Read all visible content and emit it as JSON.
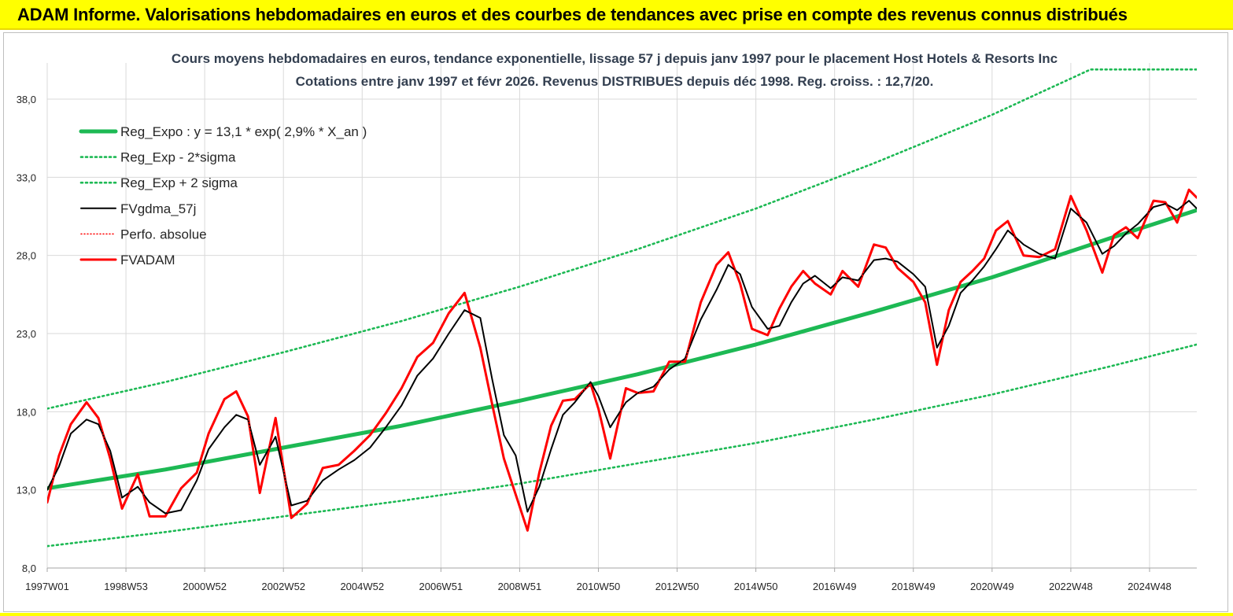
{
  "banner": {
    "title": "ADAM Informe. Valorisations hebdomadaires en euros et des courbes de tendances avec prise en compte des revenus connus distribués"
  },
  "colors": {
    "banner_bg": "#ffff00",
    "reg_expo": "#1db954",
    "fv_gdma": "#000000",
    "perfo": "#ff0000",
    "fv_adam": "#ff0000",
    "grid": "#d9d9d9"
  },
  "chart_data": {
    "type": "line",
    "title": "Cours moyens hebdomadaires en euros, tendance exponentielle, lissage 57 j depuis janv 1997 pour le placement Host Hotels & Resorts Inc",
    "subtitle": "Cotations entre janv 1997 et févr 2026. Revenus DISTRIBUES depuis déc 1998. Reg. croiss. : 12,7/20.",
    "xlabel": "",
    "ylabel": "",
    "ylim": [
      8,
      38
    ],
    "xlim": [
      1997.0,
      2026.2
    ],
    "yticks": [
      8,
      13,
      18,
      23,
      28,
      33,
      38
    ],
    "ytick_labels": [
      "8,0",
      "13,0",
      "18,0",
      "23,0",
      "28,0",
      "33,0",
      "38,0"
    ],
    "xticks": [
      1997.0,
      1999.0,
      2001.0,
      2003.0,
      2005.0,
      2007.0,
      2009.0,
      2011.0,
      2013.0,
      2015.0,
      2017.0,
      2019.0,
      2021.0,
      2023.0,
      2025.0
    ],
    "xtick_labels": [
      "1997W01",
      "1998W53",
      "2000W52",
      "2002W52",
      "2004W52",
      "2006W51",
      "2008W51",
      "2010W50",
      "2012W50",
      "2014W50",
      "2016W49",
      "2018W49",
      "2020W49",
      "2022W48",
      "2024W48"
    ],
    "legend_position": "top-left",
    "series": [
      {
        "name": "Reg_Expo : y = 13,1 * exp( 2,9% *  X_an )",
        "style": "solid-thick",
        "color": "#1db954",
        "x": [
          1997.0,
          2000.0,
          2003.0,
          2006.0,
          2009.0,
          2012.0,
          2015.0,
          2018.0,
          2021.0,
          2024.0,
          2026.2
        ],
        "values": [
          13.1,
          14.3,
          15.7,
          17.1,
          18.7,
          20.4,
          22.3,
          24.4,
          26.6,
          29.1,
          30.9
        ]
      },
      {
        "name": "Reg_Exp - 2*sigma",
        "style": "dotted",
        "color": "#1db954",
        "x": [
          1997.0,
          2000.0,
          2003.0,
          2006.0,
          2009.0,
          2012.0,
          2015.0,
          2018.0,
          2021.0,
          2024.0,
          2026.2
        ],
        "values": [
          9.4,
          10.3,
          11.3,
          12.3,
          13.4,
          14.7,
          16.0,
          17.5,
          19.1,
          20.9,
          22.3
        ]
      },
      {
        "name": "Reg_Exp + 2 sigma",
        "style": "dotted",
        "color": "#1db954",
        "x": [
          1997.0,
          2000.0,
          2003.0,
          2006.0,
          2009.0,
          2012.0,
          2015.0,
          2018.0,
          2021.0,
          2023.5,
          2026.2
        ],
        "values": [
          18.2,
          19.9,
          21.8,
          23.8,
          26.0,
          28.4,
          31.0,
          33.9,
          37.0,
          39.9,
          39.9
        ]
      },
      {
        "name": "FVgdma_57j",
        "style": "solid",
        "color": "#000000",
        "x": [
          1997.0,
          1997.3,
          1997.6,
          1998.0,
          1998.3,
          1998.6,
          1998.9,
          1999.3,
          1999.6,
          2000.0,
          2000.4,
          2000.8,
          2001.1,
          2001.5,
          2001.8,
          2002.1,
          2002.4,
          2002.8,
          2003.2,
          2003.6,
          2004.0,
          2004.4,
          2004.8,
          2005.2,
          2005.6,
          2006.0,
          2006.4,
          2006.8,
          2007.2,
          2007.6,
          2008.0,
          2008.3,
          2008.6,
          2008.9,
          2009.2,
          2009.5,
          2009.8,
          2010.1,
          2010.4,
          2010.8,
          2011.0,
          2011.3,
          2011.7,
          2012.0,
          2012.4,
          2012.8,
          2013.2,
          2013.6,
          2014.0,
          2014.3,
          2014.6,
          2014.9,
          2015.3,
          2015.6,
          2015.9,
          2016.2,
          2016.5,
          2016.9,
          2017.2,
          2017.6,
          2018.0,
          2018.3,
          2018.6,
          2019.0,
          2019.3,
          2019.6,
          2019.9,
          2020.2,
          2020.5,
          2020.8,
          2021.1,
          2021.4,
          2021.8,
          2022.2,
          2022.6,
          2023.0,
          2023.4,
          2023.8,
          2024.1,
          2024.4,
          2024.7,
          2025.1,
          2025.4,
          2025.7,
          2026.0,
          2026.2
        ],
        "values": [
          13.0,
          14.5,
          16.6,
          17.5,
          17.2,
          15.5,
          12.5,
          13.2,
          12.2,
          11.5,
          11.7,
          13.6,
          15.6,
          17.0,
          17.8,
          17.5,
          14.6,
          16.4,
          12.0,
          12.3,
          13.6,
          14.3,
          14.9,
          15.7,
          17.0,
          18.4,
          20.3,
          21.4,
          23.0,
          24.5,
          24.0,
          20.1,
          16.5,
          15.2,
          11.6,
          13.2,
          15.6,
          17.8,
          18.6,
          19.9,
          19.0,
          17.0,
          18.6,
          19.2,
          19.6,
          20.7,
          21.4,
          23.9,
          25.8,
          27.4,
          26.8,
          24.7,
          23.3,
          23.5,
          25.0,
          26.2,
          26.7,
          25.9,
          26.6,
          26.4,
          27.7,
          27.8,
          27.6,
          26.8,
          26.0,
          22.1,
          23.5,
          25.6,
          26.4,
          27.3,
          28.4,
          29.6,
          28.7,
          28.1,
          27.8,
          31.0,
          30.1,
          28.1,
          28.6,
          29.4,
          30.0,
          31.1,
          31.3,
          30.9,
          31.5,
          31.0
        ],
        "note": "approximate smoothed path"
      },
      {
        "name": "Perfo. absolue",
        "style": "dotted",
        "color": "#ff0000",
        "x": [
          1997.0,
          1997.3,
          1997.6,
          1998.0,
          1998.3,
          1998.6,
          1998.9,
          1999.3,
          1999.6,
          2000.0,
          2000.4,
          2000.8,
          2001.1,
          2001.5,
          2001.8,
          2002.1,
          2002.4,
          2002.8,
          2003.2,
          2003.6,
          2004.0,
          2004.4,
          2004.8,
          2005.2,
          2005.6,
          2006.0,
          2006.4,
          2006.8,
          2007.2,
          2007.6,
          2008.0,
          2008.3,
          2008.6,
          2008.9,
          2009.2,
          2009.5,
          2009.8,
          2010.1,
          2010.4,
          2010.8,
          2011.0,
          2011.3,
          2011.7,
          2012.0,
          2012.4,
          2012.8,
          2013.2,
          2013.6,
          2014.0,
          2014.3,
          2014.6,
          2014.9,
          2015.3,
          2015.6,
          2015.9,
          2016.2,
          2016.5,
          2016.9,
          2017.2,
          2017.6,
          2018.0,
          2018.3,
          2018.6,
          2019.0,
          2019.3,
          2019.6,
          2019.9,
          2020.2,
          2020.5,
          2020.8,
          2021.1,
          2021.4,
          2021.8,
          2022.2,
          2022.6,
          2023.0,
          2023.4,
          2023.8,
          2024.1,
          2024.4,
          2024.7,
          2025.1,
          2025.4,
          2025.7,
          2026.0,
          2026.2
        ],
        "values": [
          12.2,
          15.2,
          17.2,
          18.6,
          17.6,
          15.0,
          11.8,
          14.0,
          11.3,
          11.3,
          13.1,
          14.1,
          16.6,
          18.8,
          19.3,
          17.7,
          12.8,
          17.6,
          11.2,
          12.1,
          14.4,
          14.6,
          15.5,
          16.5,
          17.9,
          19.5,
          21.5,
          22.4,
          24.3,
          25.6,
          22.1,
          18.5,
          15.0,
          12.7,
          10.4,
          14.1,
          17.1,
          18.7,
          18.8,
          19.8,
          18.2,
          15.0,
          19.5,
          19.2,
          19.3,
          21.2,
          21.2,
          25.0,
          27.4,
          28.2,
          26.2,
          23.3,
          22.9,
          24.6,
          26.0,
          27.0,
          26.2,
          25.5,
          27.0,
          26.0,
          28.7,
          28.5,
          27.2,
          26.3,
          25.0,
          21.0,
          24.5,
          26.3,
          27.0,
          27.8,
          29.6,
          30.2,
          28.0,
          27.9,
          28.4,
          31.8,
          29.6,
          26.9,
          29.3,
          29.8,
          29.1,
          31.5,
          31.4,
          30.1,
          32.2,
          31.7
        ],
        "note": "approximate weekly path"
      },
      {
        "name": "FVADAM",
        "style": "solid-thick",
        "color": "#ff0000",
        "x": [
          1997.0,
          1997.3,
          1997.6,
          1998.0,
          1998.3,
          1998.6,
          1998.9,
          1999.3,
          1999.6,
          2000.0,
          2000.4,
          2000.8,
          2001.1,
          2001.5,
          2001.8,
          2002.1,
          2002.4,
          2002.8,
          2003.2,
          2003.6,
          2004.0,
          2004.4,
          2004.8,
          2005.2,
          2005.6,
          2006.0,
          2006.4,
          2006.8,
          2007.2,
          2007.6,
          2008.0,
          2008.3,
          2008.6,
          2008.9,
          2009.2,
          2009.5,
          2009.8,
          2010.1,
          2010.4,
          2010.8,
          2011.0,
          2011.3,
          2011.7,
          2012.0,
          2012.4,
          2012.8,
          2013.2,
          2013.6,
          2014.0,
          2014.3,
          2014.6,
          2014.9,
          2015.3,
          2015.6,
          2015.9,
          2016.2,
          2016.5,
          2016.9,
          2017.2,
          2017.6,
          2018.0,
          2018.3,
          2018.6,
          2019.0,
          2019.3,
          2019.6,
          2019.9,
          2020.2,
          2020.5,
          2020.8,
          2021.1,
          2021.4,
          2021.8,
          2022.2,
          2022.6,
          2023.0,
          2023.4,
          2023.8,
          2024.1,
          2024.4,
          2024.7,
          2025.1,
          2025.4,
          2025.7,
          2026.0,
          2026.2
        ],
        "values": [
          12.2,
          15.2,
          17.2,
          18.6,
          17.6,
          15.0,
          11.8,
          14.0,
          11.3,
          11.3,
          13.1,
          14.1,
          16.6,
          18.8,
          19.3,
          17.7,
          12.8,
          17.6,
          11.2,
          12.1,
          14.4,
          14.6,
          15.5,
          16.5,
          17.9,
          19.5,
          21.5,
          22.4,
          24.3,
          25.6,
          22.1,
          18.5,
          15.0,
          12.7,
          10.4,
          14.1,
          17.1,
          18.7,
          18.8,
          19.8,
          18.2,
          15.0,
          19.5,
          19.2,
          19.3,
          21.2,
          21.2,
          25.0,
          27.4,
          28.2,
          26.2,
          23.3,
          22.9,
          24.6,
          26.0,
          27.0,
          26.2,
          25.5,
          27.0,
          26.0,
          28.7,
          28.5,
          27.2,
          26.3,
          25.0,
          21.0,
          24.5,
          26.3,
          27.0,
          27.8,
          29.6,
          30.2,
          28.0,
          27.9,
          28.4,
          31.8,
          29.6,
          26.9,
          29.3,
          29.8,
          29.1,
          31.5,
          31.4,
          30.1,
          32.2,
          31.7
        ],
        "note": "approximate weekly path"
      }
    ]
  }
}
